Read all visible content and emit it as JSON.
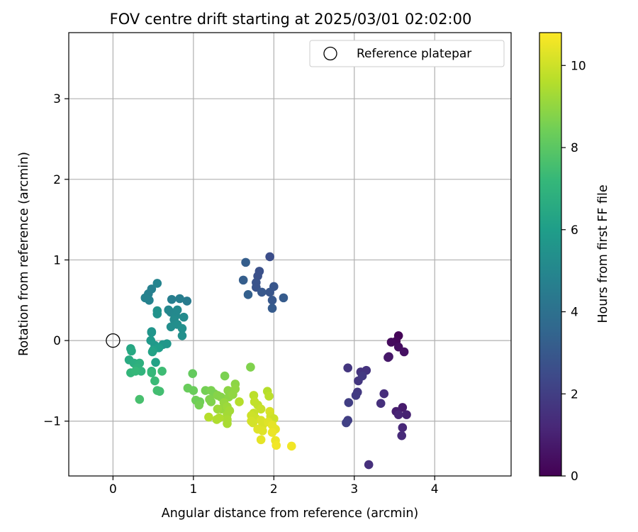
{
  "chart_data": {
    "type": "scatter",
    "title": "FOV centre drift starting at 2025/03/01 02:02:00",
    "xlabel": "Angular distance from reference (arcmin)",
    "ylabel": "Rotation from reference (arcmin)",
    "xlim": [
      -0.55,
      4.95
    ],
    "ylim": [
      -1.68,
      3.82
    ],
    "xticks": [
      0,
      1,
      2,
      3,
      4
    ],
    "yticks": [
      -1,
      0,
      1,
      2,
      3
    ],
    "grid": true,
    "legend": {
      "position": "top-right",
      "entries": [
        {
          "label": "Reference platepar",
          "marker": "open-circle"
        }
      ]
    },
    "reference_point": {
      "x": 0,
      "y": 0
    },
    "colorbar": {
      "label": "Hours from first FF file",
      "colormap": "viridis",
      "range": [
        0,
        10.8
      ],
      "ticks": [
        0,
        2,
        4,
        6,
        8,
        10
      ],
      "colors": [
        "#440154",
        "#482878",
        "#3e4989",
        "#31688e",
        "#26828e",
        "#1f9e89",
        "#35b779",
        "#6ece58",
        "#b5de2b",
        "#fde725"
      ]
    },
    "points": [
      [
        3.55,
        0.06,
        0.1
      ],
      [
        3.52,
        -0.01,
        0.2
      ],
      [
        3.46,
        -0.02,
        0.3
      ],
      [
        3.55,
        -0.08,
        0.4
      ],
      [
        3.62,
        -0.14,
        0.5
      ],
      [
        3.43,
        -0.2,
        0.6
      ],
      [
        3.42,
        -0.21,
        0.7
      ],
      [
        3.6,
        -0.83,
        0.8
      ],
      [
        3.52,
        -0.88,
        0.9
      ],
      [
        3.65,
        -0.92,
        1.0
      ],
      [
        3.55,
        -0.92,
        1.1
      ],
      [
        3.6,
        -1.08,
        1.2
      ],
      [
        3.59,
        -1.18,
        1.3
      ],
      [
        3.37,
        -0.66,
        1.4
      ],
      [
        3.33,
        -0.78,
        1.5
      ],
      [
        3.18,
        -1.54,
        1.5
      ],
      [
        3.08,
        -0.39,
        1.6
      ],
      [
        3.15,
        -0.37,
        1.6
      ],
      [
        2.92,
        -0.34,
        1.7
      ],
      [
        3.05,
        -0.5,
        1.7
      ],
      [
        3.1,
        -0.44,
        1.8
      ],
      [
        3.04,
        -0.64,
        1.8
      ],
      [
        3.02,
        -0.68,
        1.9
      ],
      [
        2.93,
        -0.77,
        2.0
      ],
      [
        2.92,
        -0.99,
        2.0
      ],
      [
        2.9,
        -1.02,
        2.1
      ],
      [
        1.95,
        1.04,
        2.6
      ],
      [
        1.82,
        0.86,
        2.7
      ],
      [
        1.8,
        0.8,
        2.7
      ],
      [
        1.78,
        0.72,
        2.8
      ],
      [
        1.78,
        0.66,
        2.8
      ],
      [
        2.0,
        0.67,
        2.9
      ],
      [
        1.95,
        0.6,
        2.9
      ],
      [
        1.85,
        0.6,
        3.0
      ],
      [
        1.98,
        0.5,
        3.0
      ],
      [
        2.12,
        0.53,
        3.1
      ],
      [
        1.98,
        0.4,
        3.1
      ],
      [
        1.65,
        0.97,
        3.2
      ],
      [
        1.62,
        0.75,
        3.2
      ],
      [
        1.68,
        0.57,
        3.3
      ],
      [
        0.92,
        0.49,
        4.5
      ],
      [
        0.83,
        0.52,
        4.6
      ],
      [
        0.73,
        0.51,
        4.6
      ],
      [
        0.48,
        0.64,
        4.7
      ],
      [
        0.44,
        0.58,
        4.7
      ],
      [
        0.4,
        0.53,
        4.8
      ],
      [
        0.45,
        0.5,
        4.8
      ],
      [
        0.55,
        0.71,
        4.9
      ],
      [
        0.69,
        0.38,
        5.0
      ],
      [
        0.72,
        0.35,
        5.0
      ],
      [
        0.78,
        0.31,
        5.1
      ],
      [
        0.8,
        0.38,
        5.1
      ],
      [
        0.88,
        0.29,
        5.2
      ],
      [
        0.76,
        0.26,
        5.2
      ],
      [
        0.8,
        0.2,
        5.3
      ],
      [
        0.72,
        0.17,
        5.3
      ],
      [
        0.86,
        0.15,
        5.4
      ],
      [
        0.86,
        0.06,
        5.4
      ],
      [
        0.55,
        0.37,
        5.5
      ],
      [
        0.55,
        0.33,
        5.5
      ],
      [
        0.48,
        0.11,
        5.6
      ],
      [
        0.48,
        0.1,
        5.6
      ],
      [
        0.67,
        -0.04,
        5.7
      ],
      [
        0.62,
        -0.05,
        5.7
      ],
      [
        0.47,
        0.0,
        5.8
      ],
      [
        0.52,
        -0.06,
        5.8
      ],
      [
        0.57,
        -0.09,
        6.0
      ],
      [
        0.5,
        -0.12,
        6.1
      ],
      [
        0.49,
        -0.14,
        6.2
      ],
      [
        0.53,
        -0.27,
        6.2
      ],
      [
        0.22,
        -0.1,
        6.4
      ],
      [
        0.23,
        -0.13,
        6.5
      ],
      [
        0.2,
        -0.24,
        6.6
      ],
      [
        0.26,
        -0.28,
        6.7
      ],
      [
        0.33,
        -0.28,
        6.8
      ],
      [
        0.3,
        -0.34,
        6.9
      ],
      [
        0.35,
        -0.38,
        7.0
      ],
      [
        0.48,
        -0.38,
        7.0
      ],
      [
        0.22,
        -0.4,
        7.1
      ],
      [
        0.28,
        -0.38,
        7.2
      ],
      [
        0.48,
        -0.4,
        7.2
      ],
      [
        0.52,
        -0.5,
        7.3
      ],
      [
        0.61,
        -0.38,
        7.4
      ],
      [
        0.55,
        -0.62,
        7.5
      ],
      [
        0.58,
        -0.63,
        7.5
      ],
      [
        0.33,
        -0.73,
        7.6
      ],
      [
        0.99,
        -0.41,
        8.2
      ],
      [
        1.0,
        -0.62,
        8.3
      ],
      [
        0.93,
        -0.59,
        8.3
      ],
      [
        1.03,
        -0.74,
        8.4
      ],
      [
        1.08,
        -0.76,
        8.4
      ],
      [
        1.07,
        -0.8,
        8.5
      ],
      [
        1.15,
        -0.62,
        8.5
      ],
      [
        1.22,
        -0.62,
        8.6
      ],
      [
        1.26,
        -0.66,
        8.6
      ],
      [
        1.2,
        -0.73,
        8.7
      ],
      [
        1.22,
        -0.76,
        8.7
      ],
      [
        1.3,
        -0.68,
        8.8
      ],
      [
        1.34,
        -0.7,
        8.8
      ],
      [
        1.39,
        -0.44,
        8.6
      ],
      [
        1.43,
        -0.62,
        8.9
      ],
      [
        1.44,
        -0.7,
        8.9
      ],
      [
        1.52,
        -0.54,
        8.9
      ],
      [
        1.52,
        -0.6,
        9.0
      ],
      [
        1.49,
        -0.67,
        9.0
      ],
      [
        1.38,
        -0.77,
        9.1
      ],
      [
        1.35,
        -0.85,
        9.1
      ],
      [
        1.3,
        -0.85,
        9.2
      ],
      [
        1.42,
        -0.82,
        9.2
      ],
      [
        1.45,
        -0.87,
        9.3
      ],
      [
        1.42,
        -0.92,
        9.3
      ],
      [
        1.42,
        -0.98,
        9.4
      ],
      [
        1.42,
        -1.03,
        9.4
      ],
      [
        1.32,
        -0.96,
        9.5
      ],
      [
        1.29,
        -0.98,
        9.5
      ],
      [
        1.19,
        -0.95,
        9.6
      ],
      [
        1.57,
        -0.76,
        9.6
      ],
      [
        1.71,
        -0.33,
        8.7
      ],
      [
        1.75,
        -0.68,
        9.7
      ],
      [
        1.76,
        -0.76,
        9.8
      ],
      [
        1.8,
        -0.8,
        9.8
      ],
      [
        1.84,
        -0.85,
        9.9
      ],
      [
        1.75,
        -0.9,
        9.9
      ],
      [
        1.72,
        -0.93,
        10.0
      ],
      [
        1.78,
        -0.97,
        10.0
      ],
      [
        1.72,
        -1.0,
        10.1
      ],
      [
        1.74,
        -1.02,
        10.1
      ],
      [
        1.84,
        -0.99,
        10.2
      ],
      [
        1.86,
        -1.05,
        10.2
      ],
      [
        1.8,
        -1.1,
        10.3
      ],
      [
        1.86,
        -1.12,
        10.3
      ],
      [
        1.84,
        -1.23,
        10.4
      ],
      [
        1.95,
        -0.88,
        10.2
      ],
      [
        1.96,
        -0.94,
        10.1
      ],
      [
        2.0,
        -0.97,
        10.0
      ],
      [
        1.93,
        -1.01,
        10.3
      ],
      [
        1.98,
        -1.05,
        10.4
      ],
      [
        2.02,
        -1.1,
        10.4
      ],
      [
        1.98,
        -1.14,
        10.5
      ],
      [
        2.02,
        -1.24,
        10.5
      ],
      [
        2.03,
        -1.3,
        10.6
      ],
      [
        1.92,
        -0.63,
        9.6
      ],
      [
        1.94,
        -0.69,
        9.7
      ],
      [
        2.22,
        -1.31,
        10.6
      ]
    ]
  }
}
